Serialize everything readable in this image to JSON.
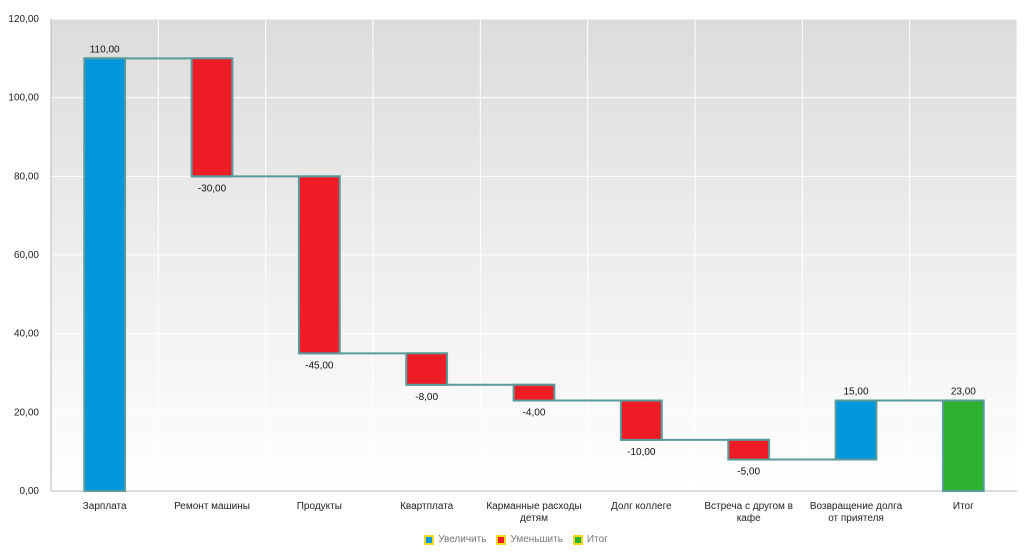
{
  "chart_data": {
    "type": "waterfall",
    "categories": [
      "Зарплата",
      "Ремонт машины",
      "Продукты",
      "Квартплата",
      "Карманные расходы детям",
      "Долг коллеге",
      "Встреча с другом в кафе",
      "Возвращение долга от приятеля",
      "Итог"
    ],
    "category_lines": [
      [
        "Зарплата"
      ],
      [
        "Ремонт машины"
      ],
      [
        "Продукты"
      ],
      [
        "Квартплата"
      ],
      [
        "Карманные расходы",
        "детям"
      ],
      [
        "Долг коллеге"
      ],
      [
        "Встреча с другом в",
        "кафе"
      ],
      [
        "Возвращение долга",
        "от приятеля"
      ],
      [
        "Итог"
      ]
    ],
    "values": [
      110,
      -30,
      -45,
      -8,
      -4,
      -10,
      -5,
      15,
      23
    ],
    "kinds": [
      "increase",
      "decrease",
      "decrease",
      "decrease",
      "decrease",
      "decrease",
      "decrease",
      "increase",
      "total"
    ],
    "data_labels": [
      "110,00",
      "-30,00",
      "-45,00",
      "-8,00",
      "-4,00",
      "-10,00",
      "-5,00",
      "15,00",
      "23,00"
    ],
    "ylim": [
      0,
      120
    ],
    "y_ticks": [
      0,
      20,
      40,
      60,
      80,
      100,
      120
    ],
    "y_tick_labels": [
      "0,00",
      "20,00",
      "40,00",
      "60,00",
      "80,00",
      "100,00",
      "120,00"
    ],
    "grid": true,
    "legend_position": "bottom",
    "legend": [
      {
        "key": "increase",
        "label": "Увеличить",
        "color": "#0096dc"
      },
      {
        "key": "decrease",
        "label": "Уменьшить",
        "color": "#ee1c25"
      },
      {
        "key": "total",
        "label": "Итог",
        "color": "#2db12f"
      }
    ],
    "colors": {
      "increase": "#0096dc",
      "decrease": "#ee1c25",
      "total": "#2db12f",
      "bar_border": "#5a9a9a",
      "connector": "#5a9a9a"
    }
  }
}
